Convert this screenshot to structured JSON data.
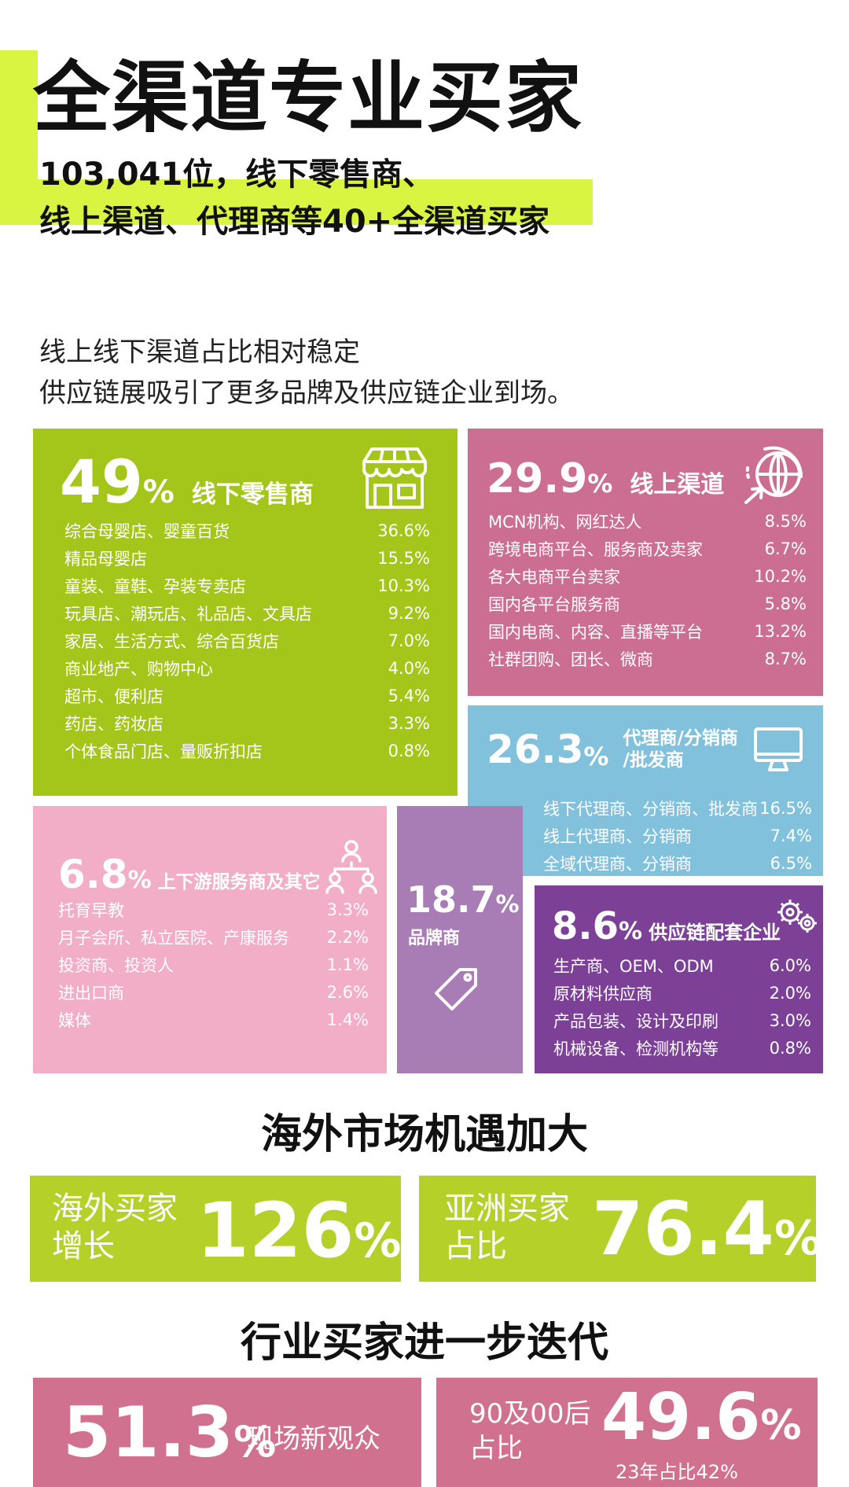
{
  "header": {
    "title": "全渠道专业买家",
    "subtitle_line1": "103,041位，线下零售商、",
    "subtitle_line2": "线上渠道、代理商等40+全渠道买家",
    "intro_line1": "线上线下渠道占比相对稳定",
    "intro_line2": "供应链展吸引了更多品牌及供应链企业到场。"
  },
  "panels": {
    "offline": {
      "value": "49",
      "unit": "%",
      "title": "线下零售商",
      "color": "#a4c51a",
      "icon": "storefront-icon",
      "rows": [
        {
          "label": "综合母婴店、婴童百货",
          "value": "36.6%"
        },
        {
          "label": "精品母婴店",
          "value": "15.5%"
        },
        {
          "label": "童装、童鞋、孕装专卖店",
          "value": "10.3%"
        },
        {
          "label": "玩具店、潮玩店、礼品店、文具店",
          "value": "9.2%"
        },
        {
          "label": "家居、生活方式、综合百货店",
          "value": "7.0%"
        },
        {
          "label": "商业地产、购物中心",
          "value": "4.0%"
        },
        {
          "label": "超市、便利店",
          "value": "5.4%"
        },
        {
          "label": "药店、药妆店",
          "value": "3.3%"
        },
        {
          "label": "个体食品门店、量贩折扣店",
          "value": "0.8%"
        }
      ]
    },
    "online": {
      "value": "29.9",
      "unit": "%",
      "title": "线上渠道",
      "color": "#cc6e92",
      "icon": "globe-icon",
      "rows": [
        {
          "label": "MCN机构、网红达人",
          "value": "8.5%"
        },
        {
          "label": "跨境电商平台、服务商及卖家",
          "value": "6.7%"
        },
        {
          "label": "各大电商平台卖家",
          "value": "10.2%"
        },
        {
          "label": "国内各平台服务商",
          "value": "5.8%"
        },
        {
          "label": "国内电商、内容、直播等平台",
          "value": "13.2%"
        },
        {
          "label": "社群团购、团长、微商",
          "value": "8.7%"
        }
      ]
    },
    "agent": {
      "value": "26.3",
      "unit": "%",
      "title_line1": "代理商/分销商",
      "title_line2": "/批发商",
      "color": "#82c1dc",
      "icon": "monitor-icon",
      "rows": [
        {
          "label": "线下代理商、分销商、批发商",
          "value": "16.5%"
        },
        {
          "label": "线上代理商、分销商",
          "value": "7.4%"
        },
        {
          "label": "全域代理商、分销商",
          "value": "6.5%"
        }
      ]
    },
    "updown": {
      "value": "6.8",
      "unit": "%",
      "title": "上下游服务商及其它",
      "color": "#f2aec7",
      "icon": "people-network-icon",
      "rows": [
        {
          "label": "托育早教",
          "value": "3.3%"
        },
        {
          "label": "月子会所、私立医院、产康服务",
          "value": "2.2%"
        },
        {
          "label": "投资商、投资人",
          "value": "1.1%"
        },
        {
          "label": "进出口商",
          "value": "2.6%"
        },
        {
          "label": "媒体",
          "value": "1.4%"
        }
      ]
    },
    "brand": {
      "value": "18.7",
      "unit": "%",
      "title": "品牌商",
      "color": "#a87cb4",
      "icon": "tag-icon"
    },
    "supply": {
      "value": "8.6",
      "unit": "%",
      "title": "供应链配套企业",
      "color": "#7c4197",
      "icon": "gears-icon",
      "rows": [
        {
          "label": "生产商、OEM、ODM",
          "value": "6.0%"
        },
        {
          "label": "原材料供应商",
          "value": "2.0%"
        },
        {
          "label": "产品包装、设计及印刷",
          "value": "3.0%"
        },
        {
          "label": "机械设备、检测机构等",
          "value": "0.8%"
        }
      ]
    }
  },
  "overseas": {
    "heading": "海外市场机遇加大",
    "stat1": {
      "label_line1": "海外买家",
      "label_line2": "增长",
      "value": "126",
      "unit": "%"
    },
    "stat2": {
      "label_line1": "亚洲买家",
      "label_line2": "占比",
      "value": "76.4",
      "unit": "%"
    }
  },
  "industry": {
    "heading": "行业买家进一步迭代",
    "stat1": {
      "value": "51.3",
      "unit": "%",
      "label": "现场新观众"
    },
    "stat2": {
      "label_line1": "90及00后",
      "label_line2": "占比",
      "value": "49.6",
      "unit": "%",
      "note": "23年占比42%"
    }
  }
}
